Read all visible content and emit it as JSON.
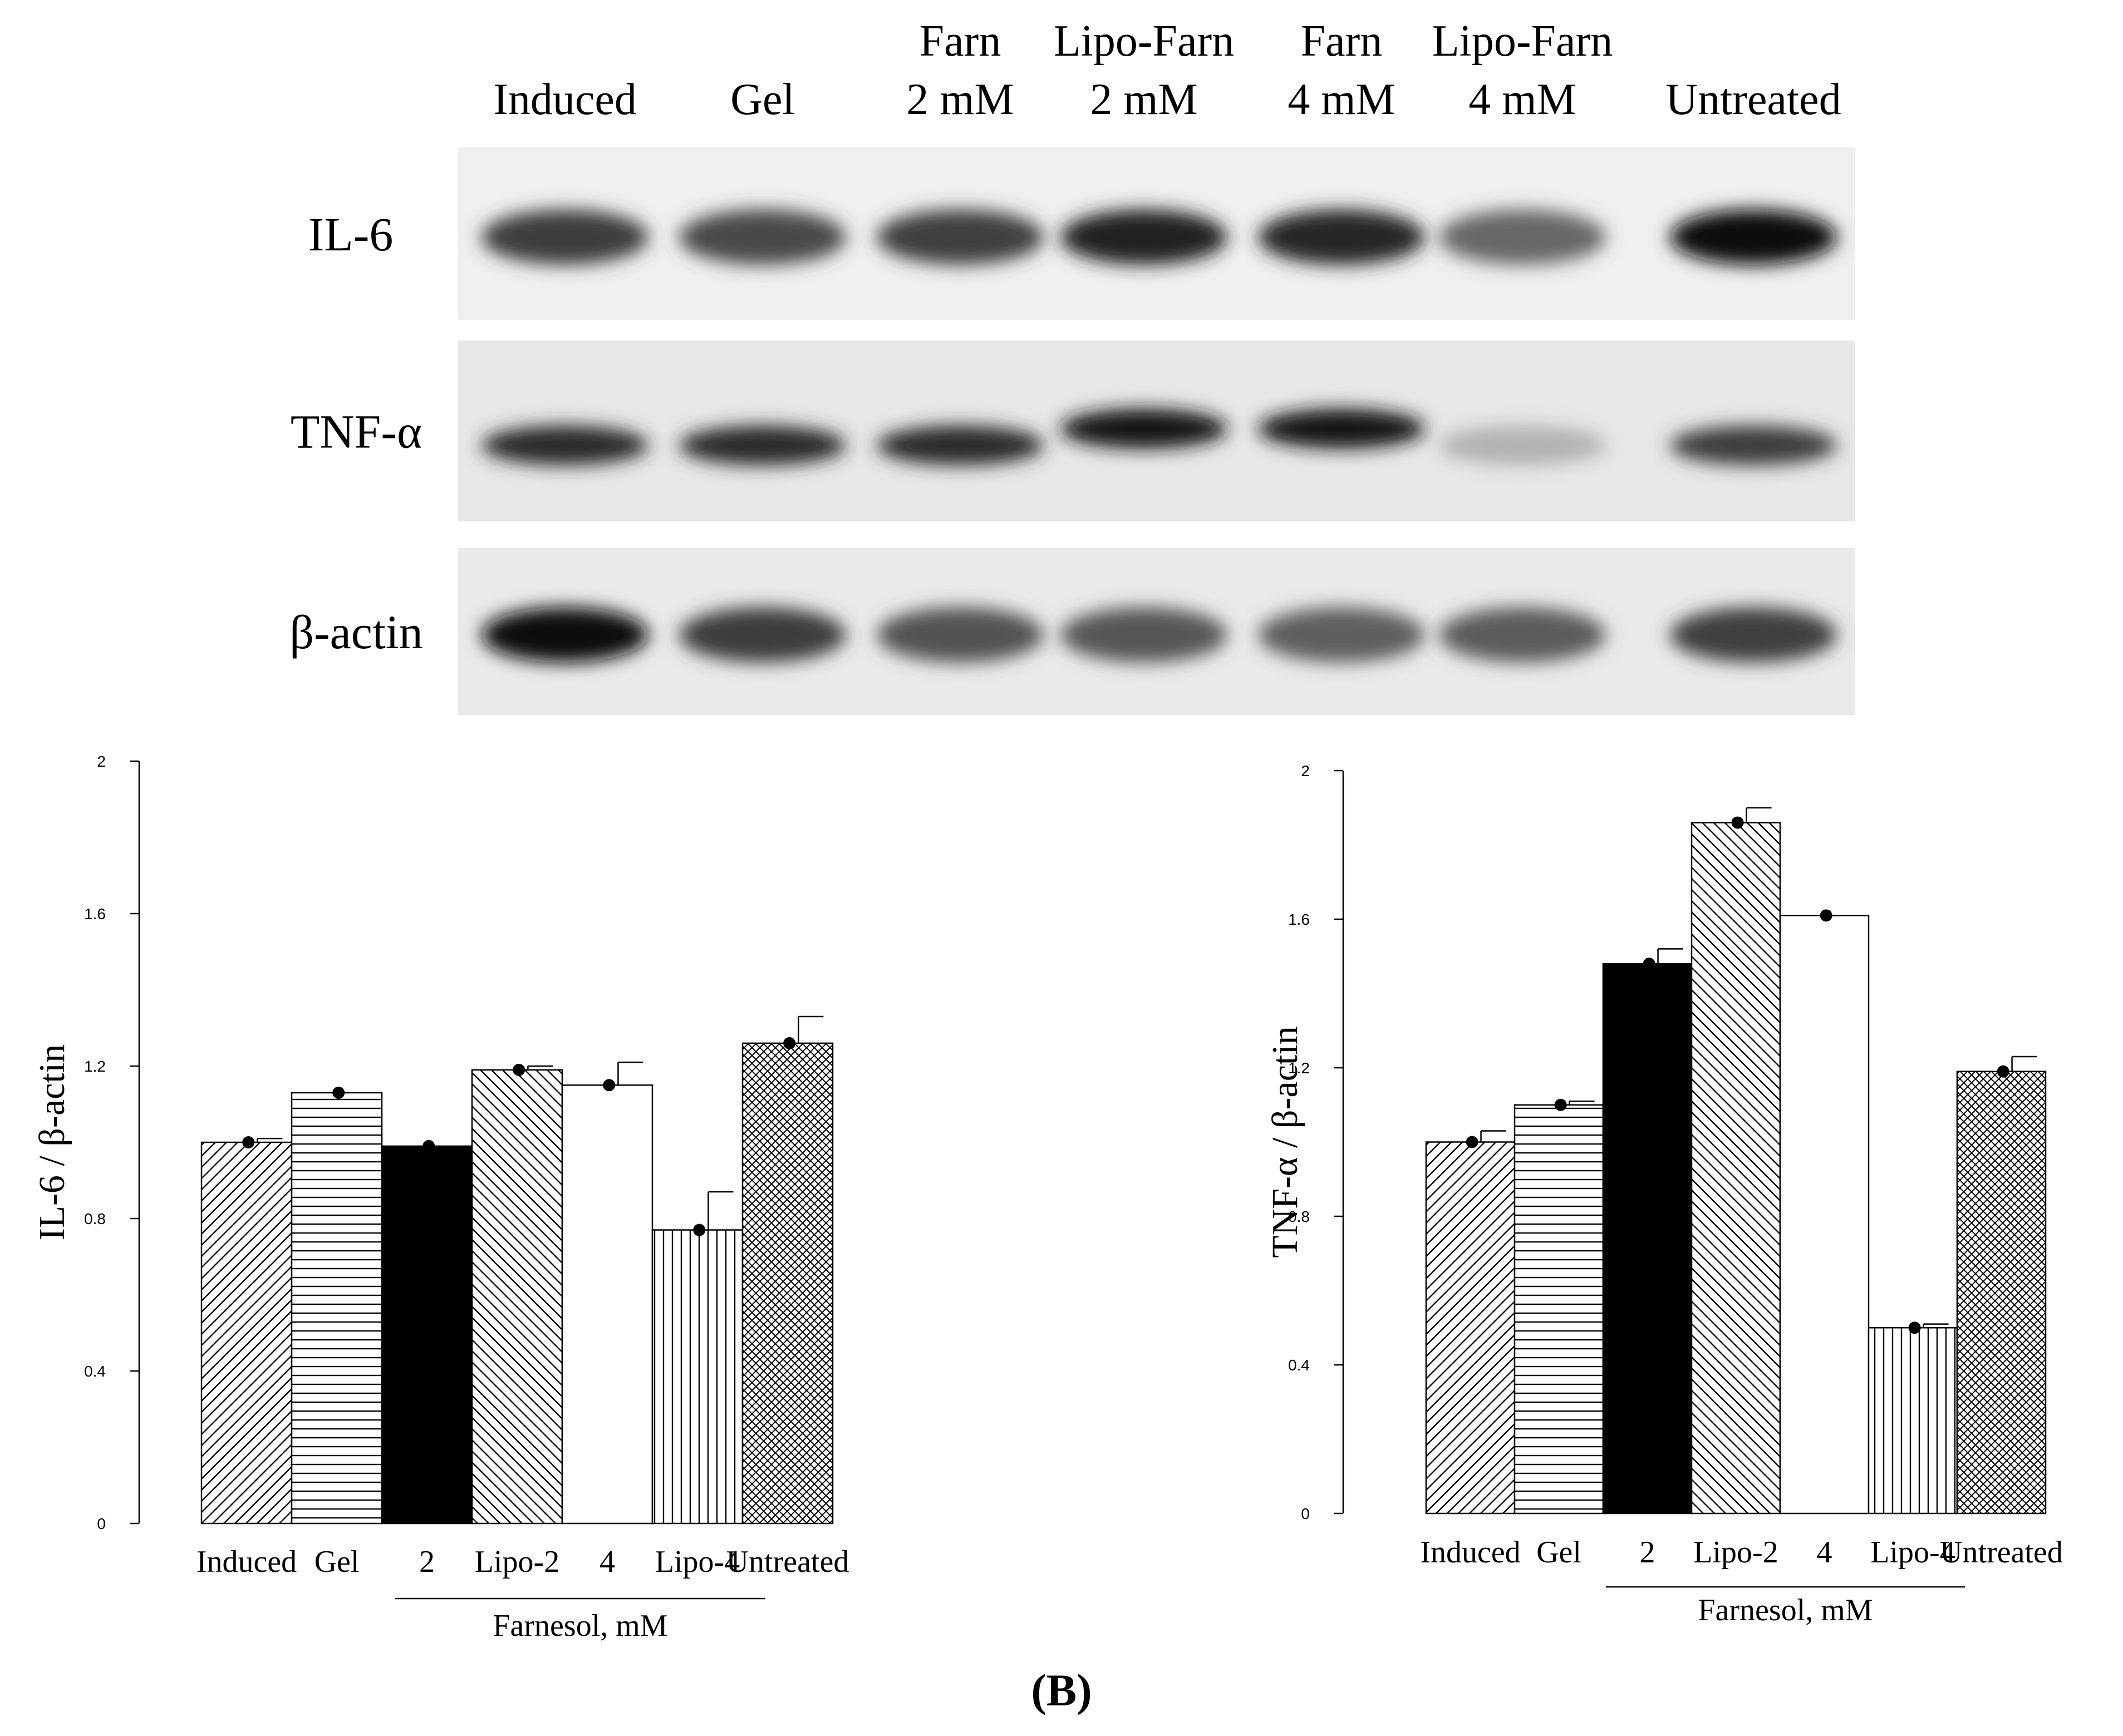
{
  "panel_label": "(B)",
  "blot": {
    "lanes": [
      [
        "Induced"
      ],
      [
        "Gel"
      ],
      [
        "Farn",
        "2 mM"
      ],
      [
        "Lipo-Farn",
        "2 mM"
      ],
      [
        "Farn",
        "4 mM"
      ],
      [
        "Lipo-Farn",
        "4 mM"
      ],
      [
        "Untreated"
      ]
    ],
    "rows": [
      {
        "label": "IL-6",
        "intensity": [
          0.72,
          0.66,
          0.7,
          0.84,
          0.82,
          0.52,
          0.96
        ]
      },
      {
        "label": "TNF-α",
        "intensity": [
          0.8,
          0.8,
          0.8,
          0.9,
          0.9,
          0.18,
          0.72
        ]
      },
      {
        "label": "β-actin",
        "intensity": [
          0.95,
          0.72,
          0.62,
          0.6,
          0.56,
          0.58,
          0.7
        ]
      }
    ]
  },
  "chart_data": [
    {
      "type": "bar",
      "categories": [
        "Induced",
        "Gel",
        "2",
        "Lipo-2",
        "4",
        "Lipo-4",
        "Untreated"
      ],
      "values": [
        1.0,
        1.13,
        0.99,
        1.19,
        1.15,
        0.77,
        1.26
      ],
      "error": [
        0.01,
        0.0,
        0.0,
        0.01,
        0.06,
        0.1,
        0.07
      ],
      "patterns": [
        "diag-right",
        "horizontal",
        "solid",
        "diag-left",
        "white",
        "vertical",
        "crosshatch"
      ],
      "title": "",
      "xlabel": "",
      "ylabel": "IL-6 / β-actin",
      "group_label": "Farnesol, mM",
      "ylim": [
        0,
        2
      ],
      "yticks": [
        "0",
        "0.4",
        "0.8",
        "1.2",
        "1.6",
        "2"
      ],
      "grid": false
    },
    {
      "type": "bar",
      "categories": [
        "Induced",
        "Gel",
        "2",
        "Lipo-2",
        "4",
        "Lipo-4",
        "Untreated"
      ],
      "values": [
        1.0,
        1.1,
        1.48,
        1.86,
        1.61,
        0.5,
        1.19
      ],
      "error": [
        0.03,
        0.01,
        0.04,
        0.04,
        0.0,
        0.01,
        0.04
      ],
      "patterns": [
        "diag-right",
        "horizontal",
        "solid",
        "diag-left",
        "white",
        "vertical",
        "crosshatch"
      ],
      "title": "",
      "xlabel": "",
      "ylabel": "TNF-α / β-actin",
      "group_label": "Farnesol, mM",
      "ylim": [
        0,
        2
      ],
      "yticks": [
        "0",
        "0.4",
        "0.8",
        "1.2",
        "1.6",
        "2"
      ],
      "grid": false
    }
  ]
}
